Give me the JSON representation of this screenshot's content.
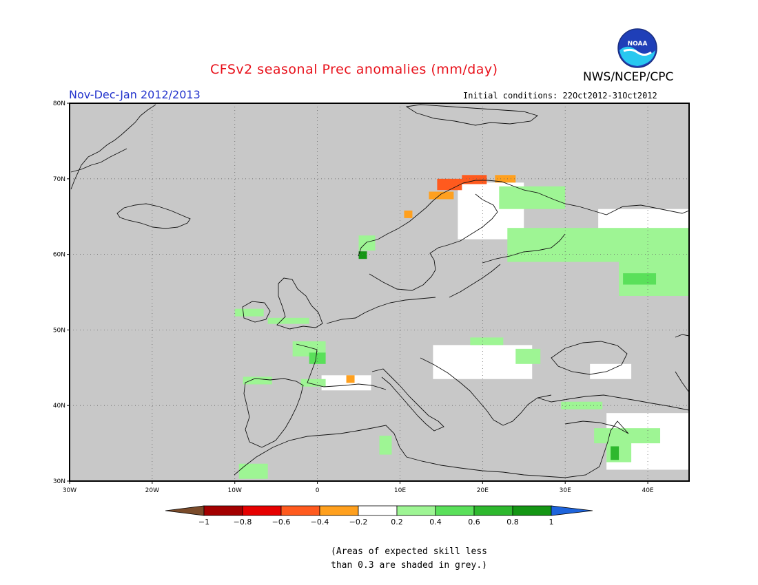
{
  "header": {
    "title": "CFSv2 seasonal Prec anomalies (mm/day)",
    "agency": "NWS/NCEP/CPC",
    "logo_text": "NOAA",
    "period": "Nov-Dec-Jan 2012/2013",
    "initial_conditions": "Initial conditions: 22Oct2012-31Oct2012"
  },
  "map": {
    "lon_range": [
      -30,
      45
    ],
    "lat_range": [
      30,
      80
    ],
    "lon_ticks": [
      {
        "value": -30,
        "label": "30W"
      },
      {
        "value": -20,
        "label": "20W"
      },
      {
        "value": -10,
        "label": "10W"
      },
      {
        "value": 0,
        "label": "0"
      },
      {
        "value": 10,
        "label": "10E"
      },
      {
        "value": 20,
        "label": "20E"
      },
      {
        "value": 30,
        "label": "30E"
      },
      {
        "value": 40,
        "label": "40E"
      }
    ],
    "lat_ticks": [
      {
        "value": 80,
        "label": "80N"
      },
      {
        "value": 70,
        "label": "70N"
      },
      {
        "value": 60,
        "label": "60N"
      },
      {
        "value": 50,
        "label": "50N"
      },
      {
        "value": 40,
        "label": "40N"
      },
      {
        "value": 30,
        "label": "30N"
      }
    ],
    "low_skill_color": "#c8c8c8",
    "neutral_color": "#ffffff"
  },
  "anomaly_cells": [
    {
      "lon": 14.5,
      "lat": 68.5,
      "w": 3,
      "h": 1.5,
      "value": -0.6
    },
    {
      "lon": 17.5,
      "lat": 69.3,
      "w": 3,
      "h": 1.2,
      "value": -0.6
    },
    {
      "lon": 13.5,
      "lat": 67.3,
      "w": 3,
      "h": 1.0,
      "value": -0.3
    },
    {
      "lon": 21.5,
      "lat": 69.5,
      "w": 2.5,
      "h": 1.0,
      "value": -0.3
    },
    {
      "lon": 10.5,
      "lat": 64.8,
      "w": 1.0,
      "h": 1.0,
      "value": -0.3
    },
    {
      "lon": 3.5,
      "lat": 43.0,
      "w": 1.0,
      "h": 1.0,
      "value": -0.3
    },
    {
      "lon": 5.0,
      "lat": 60.5,
      "w": 2.0,
      "h": 2.0,
      "value": 0.3
    },
    {
      "lon": 5.0,
      "lat": 59.4,
      "w": 1.0,
      "h": 1.0,
      "value": 0.9
    },
    {
      "lon": -10.0,
      "lat": 51.8,
      "w": 3.5,
      "h": 1.0,
      "value": 0.3
    },
    {
      "lon": -6.0,
      "lat": 50.8,
      "w": 5.0,
      "h": 0.8,
      "value": 0.3
    },
    {
      "lon": -3.0,
      "lat": 46.5,
      "w": 4.0,
      "h": 2.0,
      "value": 0.3
    },
    {
      "lon": -1.0,
      "lat": 45.5,
      "w": 2.0,
      "h": 1.5,
      "value": 0.5
    },
    {
      "lon": -9.0,
      "lat": 42.8,
      "w": 3.5,
      "h": 1.0,
      "value": 0.3
    },
    {
      "lon": -2.0,
      "lat": 42.5,
      "w": 3.0,
      "h": 1.0,
      "value": 0.3
    },
    {
      "lon": 22.0,
      "lat": 66.0,
      "w": 8.0,
      "h": 3.0,
      "value": 0.3
    },
    {
      "lon": 23.0,
      "lat": 59.0,
      "w": 22.0,
      "h": 4.5,
      "value": 0.3
    },
    {
      "lon": 36.5,
      "lat": 54.5,
      "w": 8.5,
      "h": 4.5,
      "value": 0.3
    },
    {
      "lon": 37.0,
      "lat": 56.0,
      "w": 4.0,
      "h": 1.5,
      "value": 0.5
    },
    {
      "lon": 24.0,
      "lat": 45.5,
      "w": 3.0,
      "h": 2.0,
      "value": 0.3
    },
    {
      "lon": 18.5,
      "lat": 48.0,
      "w": 4.0,
      "h": 1.0,
      "value": 0.3
    },
    {
      "lon": 29.5,
      "lat": 39.5,
      "w": 5.0,
      "h": 1.0,
      "value": 0.3
    },
    {
      "lon": 33.5,
      "lat": 35.0,
      "w": 8.0,
      "h": 2.0,
      "value": 0.3
    },
    {
      "lon": 35.0,
      "lat": 32.5,
      "w": 3.0,
      "h": 3.0,
      "value": 0.3
    },
    {
      "lon": 35.5,
      "lat": 32.8,
      "w": 1.0,
      "h": 1.8,
      "value": 0.7
    },
    {
      "lon": -9.5,
      "lat": 30.3,
      "w": 3.5,
      "h": 2.0,
      "value": 0.3
    },
    {
      "lon": 7.5,
      "lat": 33.5,
      "w": 1.5,
      "h": 2.5,
      "value": 0.3
    }
  ],
  "neutral_areas": [
    {
      "lon": 17.0,
      "lat": 62.0,
      "w": 8.0,
      "h": 7.5
    },
    {
      "lon": 34.0,
      "lat": 61.5,
      "w": 11.0,
      "h": 4.5
    },
    {
      "lon": 14.0,
      "lat": 43.5,
      "w": 12.0,
      "h": 4.5
    },
    {
      "lon": 35.0,
      "lat": 31.5,
      "w": 10.0,
      "h": 7.5
    },
    {
      "lon": 33.0,
      "lat": 43.5,
      "w": 5.0,
      "h": 2.0
    },
    {
      "lon": 0.5,
      "lat": 42.0,
      "w": 6.0,
      "h": 2.0
    }
  ],
  "legend": {
    "colors": [
      "#7a4b2a",
      "#a30000",
      "#e60000",
      "#ff5a1e",
      "#ffa01e",
      "#ffffff",
      "#9ef594",
      "#5ae05a",
      "#2eb82e",
      "#149614",
      "#1e64dc"
    ],
    "labels": [
      "−1",
      "−0.8",
      "−0.6",
      "−0.4",
      "−0.2",
      "0.2",
      "0.4",
      "0.6",
      "0.8",
      "1"
    ],
    "scale_min": -1,
    "scale_max": 1
  },
  "note": {
    "line1": "(Areas of expected skill less",
    "line2": "than 0.3 are shaded in grey.)"
  }
}
